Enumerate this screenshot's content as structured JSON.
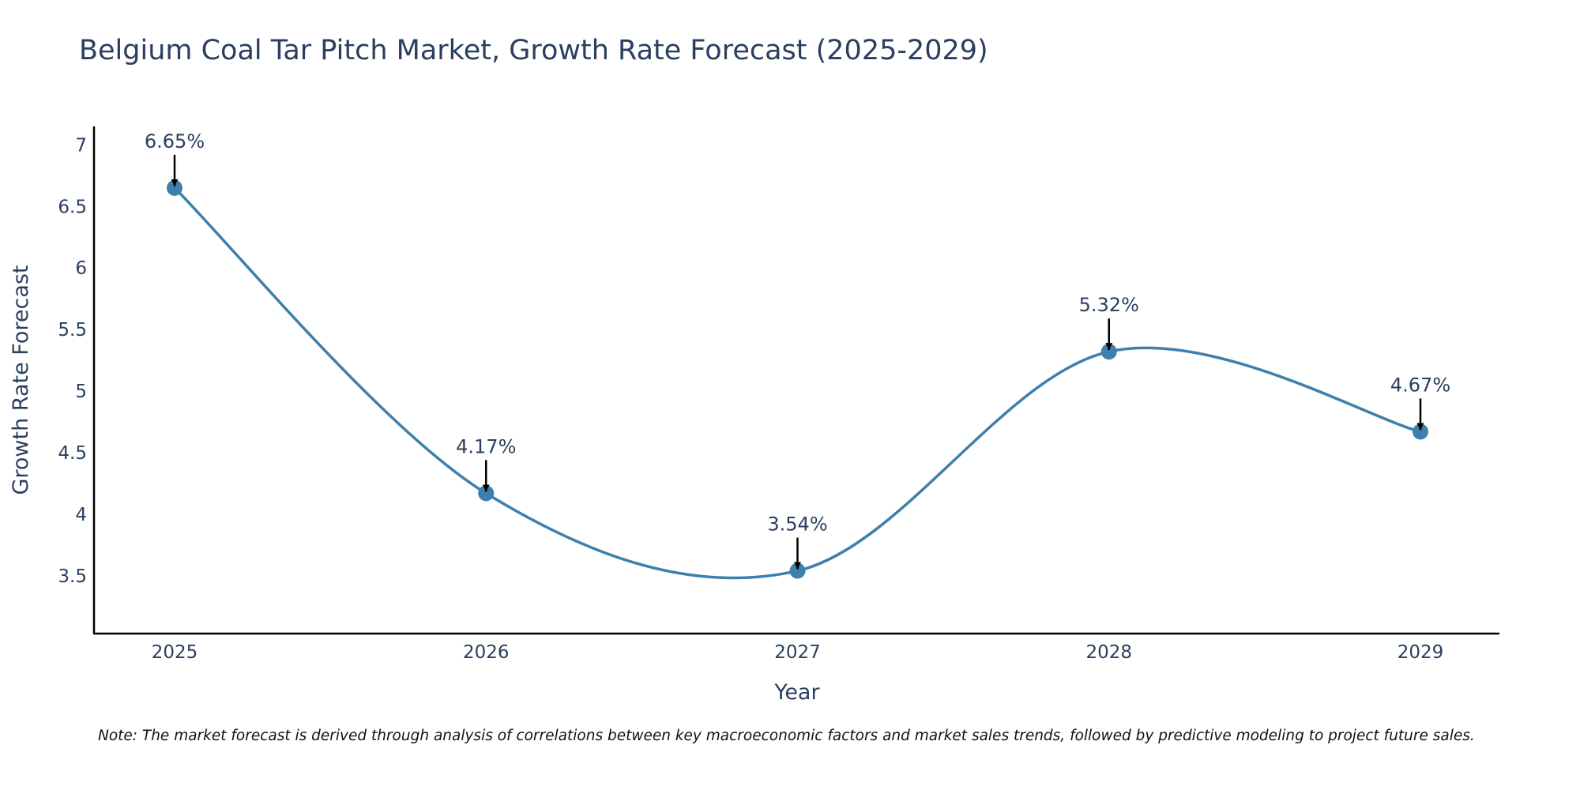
{
  "chart_data": {
    "type": "line",
    "title": "Belgium Coal Tar Pitch Market, Growth Rate Forecast (2025-2029)",
    "xlabel": "Year",
    "ylabel": "Growth Rate Forecast",
    "categories": [
      "2025",
      "2026",
      "2027",
      "2028",
      "2029"
    ],
    "series": [
      {
        "name": "Growth Rate Forecast",
        "values": [
          6.65,
          4.17,
          3.54,
          5.32,
          4.67
        ],
        "labels": [
          "6.65%",
          "4.17%",
          "3.54%",
          "5.32%",
          "4.67%"
        ],
        "color": "#3d7fad"
      }
    ],
    "yticks": [
      "3.5",
      "4",
      "4.5",
      "5",
      "5.5",
      "6",
      "6.5",
      "7"
    ],
    "ylim": [
      3.03,
      7.15
    ],
    "grid": false,
    "line_shape": "spline"
  },
  "note": "Note: The market forecast is derived through analysis of correlations between key macroeconomic factors and market sales trends, followed by predictive modeling to project future sales."
}
